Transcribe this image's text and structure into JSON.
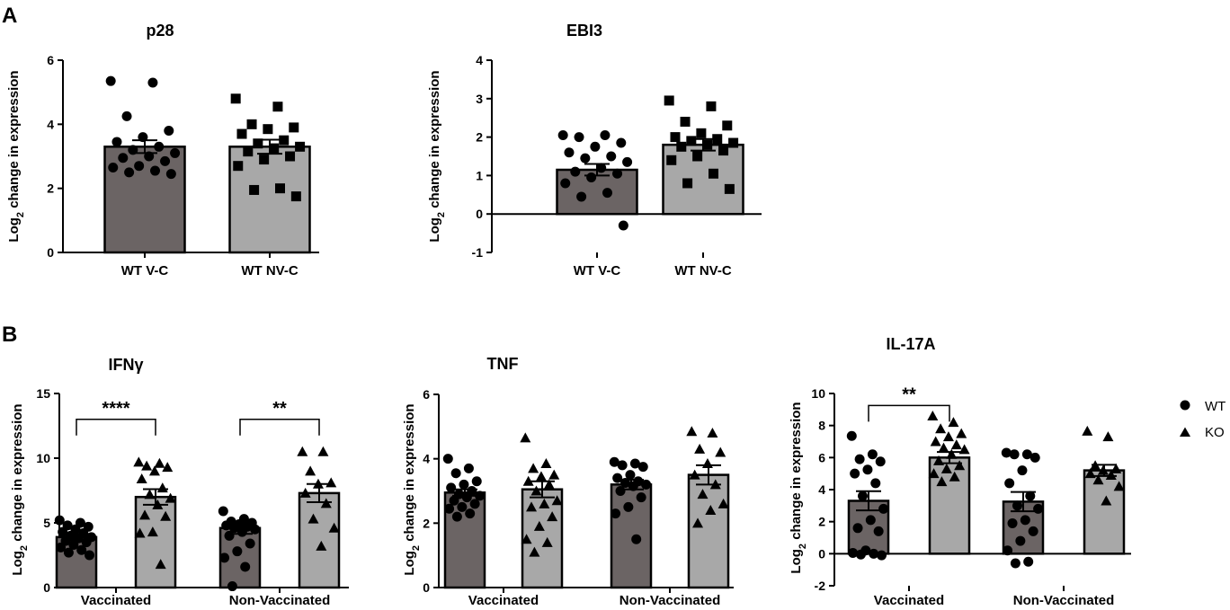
{
  "panels": {
    "A": "A",
    "B": "B"
  },
  "colors": {
    "wt_bar": "#6b6464",
    "ko_bar": "#a8a8a8",
    "marker": "#000000"
  },
  "legend": {
    "wt": "WT",
    "ko": "KO"
  },
  "chart_data": [
    {
      "id": "p28",
      "type": "bar",
      "title": "p28",
      "ylabel": "Log2 change in expression",
      "ylim": [
        0,
        6
      ],
      "yticks": [
        0,
        2,
        4,
        6
      ],
      "categories": [
        "WT V-C",
        "WT NV-C"
      ],
      "series": [
        {
          "name": "WT V-C",
          "marker": "circle",
          "mean": 3.3,
          "sem": 0.2,
          "points": [
            5.35,
            5.3,
            4.25,
            3.8,
            3.6,
            3.45,
            3.3,
            3.2,
            3.1,
            3.0,
            2.95,
            2.85,
            2.7,
            2.65,
            2.55,
            2.5,
            2.45
          ]
        },
        {
          "name": "WT NV-C",
          "marker": "square",
          "mean": 3.3,
          "sem": 0.22,
          "points": [
            4.8,
            4.55,
            4.0,
            3.9,
            3.85,
            3.7,
            3.5,
            3.4,
            3.3,
            3.25,
            3.15,
            3.0,
            2.9,
            2.7,
            2.0,
            1.95,
            1.75
          ]
        }
      ]
    },
    {
      "id": "ebi3",
      "type": "bar",
      "title": "EBI3",
      "ylabel": "Log2 change in expression",
      "ylim": [
        -1,
        4
      ],
      "yticks": [
        -1,
        0,
        1,
        2,
        3,
        4
      ],
      "categories": [
        "WT V-C",
        "WT NV-C"
      ],
      "series": [
        {
          "name": "WT V-C",
          "marker": "circle",
          "mean": 1.15,
          "sem": 0.15,
          "points": [
            2.05,
            2.05,
            2.0,
            1.85,
            1.75,
            1.6,
            1.5,
            1.45,
            1.35,
            1.2,
            1.1,
            1.05,
            0.95,
            0.8,
            0.55,
            0.45,
            -0.3
          ]
        },
        {
          "name": "WT NV-C",
          "marker": "square",
          "mean": 1.8,
          "sem": 0.15,
          "points": [
            2.95,
            2.8,
            2.4,
            2.3,
            2.1,
            2.0,
            1.95,
            1.9,
            1.85,
            1.8,
            1.75,
            1.65,
            1.5,
            1.4,
            1.05,
            0.8,
            0.65
          ]
        }
      ]
    },
    {
      "id": "ifng",
      "type": "bar",
      "title": "IFNγ",
      "ylabel": "Log2 change in expression",
      "ylim": [
        0,
        15
      ],
      "yticks": [
        0,
        5,
        10,
        15
      ],
      "categories": [
        "Vaccinated",
        "Non-Vaccinated"
      ],
      "series": [
        {
          "name": "WT",
          "marker": "circle",
          "values": [
            3.9,
            4.6
          ],
          "sem": [
            0.22,
            0.45
          ],
          "points": [
            [
              5.2,
              5.0,
              4.8,
              4.7,
              4.5,
              4.3,
              4.2,
              4.0,
              3.9,
              3.8,
              3.6,
              3.5,
              3.3,
              3.1,
              2.9,
              2.7,
              2.5
            ],
            [
              5.9,
              5.3,
              5.1,
              5.0,
              4.9,
              4.8,
              4.7,
              4.6,
              4.5,
              4.3,
              4.0,
              3.4,
              2.8,
              2.3,
              1.6,
              0.1
            ]
          ]
        },
        {
          "name": "KO",
          "marker": "triangle",
          "values": [
            7.0,
            7.3
          ],
          "sem": [
            0.6,
            0.7
          ],
          "points": [
            [
              9.7,
              9.6,
              9.4,
              9.3,
              9.0,
              8.4,
              7.7,
              7.2,
              6.9,
              6.4,
              5.6,
              5.5,
              4.3,
              4.2,
              1.8
            ],
            [
              10.5,
              10.5,
              9.0,
              8.1,
              8.0,
              7.3,
              6.5,
              5.3,
              4.6,
              3.2
            ]
          ]
        }
      ],
      "significance": [
        {
          "category_index": 0,
          "label": "****",
          "y": 13.0
        },
        {
          "category_index": 1,
          "label": "**",
          "y": 13.0
        }
      ]
    },
    {
      "id": "tnf",
      "type": "bar",
      "title": "TNF",
      "ylabel": "Log2 change in expression",
      "ylim": [
        0,
        6
      ],
      "yticks": [
        0,
        2,
        4,
        6
      ],
      "categories": [
        "Vaccinated",
        "Non-Vaccinated"
      ],
      "series": [
        {
          "name": "WT",
          "marker": "circle",
          "values": [
            2.95,
            3.2
          ],
          "sem": [
            0.1,
            0.15
          ],
          "points": [
            [
              4.0,
              3.7,
              3.55,
              3.3,
              3.2,
              3.1,
              3.0,
              2.9,
              2.85,
              2.8,
              2.7,
              2.6,
              2.5,
              2.45,
              2.3,
              2.2
            ],
            [
              3.9,
              3.85,
              3.8,
              3.75,
              3.5,
              3.4,
              3.3,
              3.25,
              3.2,
              3.15,
              3.0,
              2.8,
              2.5,
              2.3,
              1.5
            ]
          ]
        },
        {
          "name": "KO",
          "marker": "triangle",
          "values": [
            3.05,
            3.5
          ],
          "sem": [
            0.25,
            0.3
          ],
          "points": [
            [
              4.65,
              3.85,
              3.7,
              3.5,
              3.45,
              3.3,
              3.2,
              3.0,
              2.7,
              2.6,
              2.5,
              2.2,
              1.9,
              1.5,
              1.4,
              1.1
            ],
            [
              4.85,
              4.8,
              4.3,
              4.2,
              3.85,
              3.5,
              3.2,
              2.9,
              2.6,
              2.4,
              2.0
            ]
          ]
        }
      ]
    },
    {
      "id": "il17a",
      "type": "bar",
      "title": "IL-17A",
      "ylabel": "Log2 change in expression",
      "ylim": [
        -2,
        10
      ],
      "yticks": [
        -2,
        0,
        2,
        4,
        6,
        8,
        10
      ],
      "categories": [
        "Vaccinated",
        "Non-Vaccinated"
      ],
      "series": [
        {
          "name": "WT",
          "marker": "circle",
          "values": [
            3.3,
            3.25
          ],
          "sem": [
            0.6,
            0.6
          ],
          "points": [
            [
              7.35,
              6.2,
              5.9,
              5.75,
              5.25,
              5.0,
              4.4,
              3.6,
              2.8,
              2.1,
              1.6,
              1.4,
              0.2,
              0.05,
              0.0,
              -0.05,
              -0.1
            ],
            [
              6.3,
              6.2,
              6.2,
              6.0,
              5.2,
              4.4,
              3.6,
              3.0,
              2.8,
              2.1,
              1.9,
              1.4,
              0.8,
              0.2,
              -0.5,
              -0.6
            ]
          ]
        },
        {
          "name": "KO",
          "marker": "triangle",
          "values": [
            6.0,
            5.2
          ],
          "sem": [
            0.35,
            0.35
          ],
          "points": [
            [
              8.6,
              8.2,
              7.8,
              7.5,
              7.3,
              7.0,
              6.8,
              6.6,
              6.5,
              6.2,
              5.8,
              5.5,
              5.3,
              5.0,
              4.8,
              4.5
            ],
            [
              7.65,
              7.3,
              5.5,
              5.3,
              5.2,
              5.0,
              4.9,
              4.6,
              4.2,
              3.3
            ]
          ]
        }
      ],
      "significance": [
        {
          "category_index": 0,
          "label": "**",
          "y": 9.25
        }
      ]
    }
  ]
}
